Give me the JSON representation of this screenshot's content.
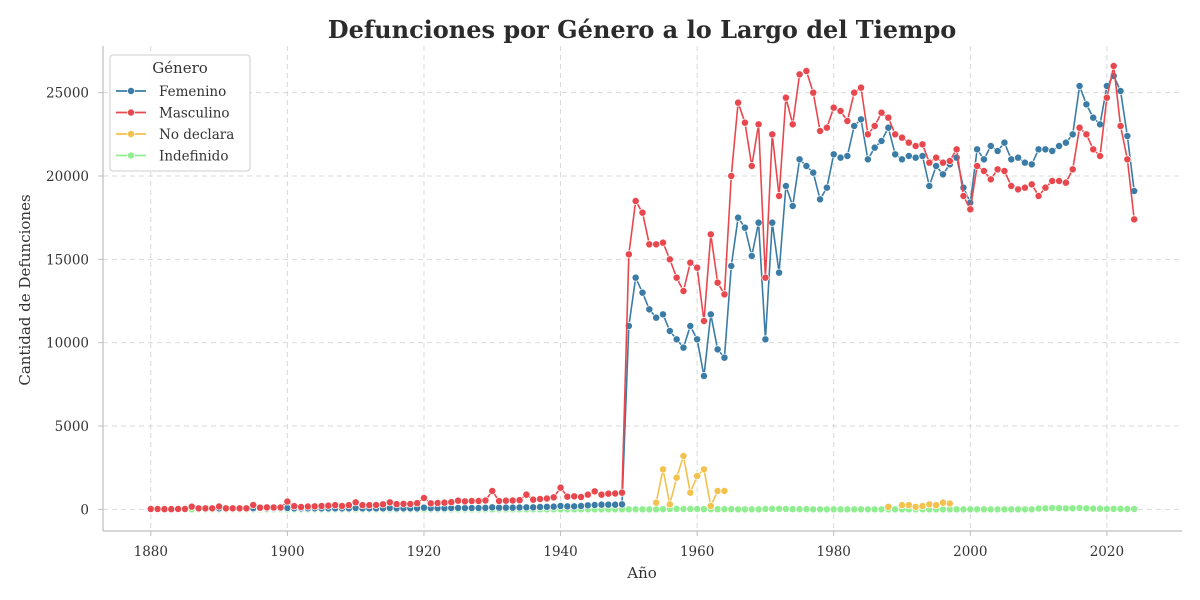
{
  "chart_data": {
    "type": "line",
    "title": "Defunciones por Género a lo Largo del Tiempo",
    "xlabel": "Año",
    "ylabel": "Cantidad de Defunciones",
    "xlim": [
      1873,
      2031
    ],
    "ylim": [
      -1300,
      27800
    ],
    "xticks": [
      1880,
      1900,
      1920,
      1940,
      1960,
      1980,
      2000,
      2020
    ],
    "yticks": [
      0,
      5000,
      10000,
      15000,
      20000,
      25000
    ],
    "grid": true,
    "legend": {
      "title": "Género",
      "placement": "top-left",
      "entries": [
        "Femenino",
        "Masculino",
        "No declara",
        "Indefinido"
      ]
    },
    "series": [
      {
        "name": "Femenino",
        "color": "#3a7ca5",
        "x": [
          1887,
          1888,
          1889,
          1890,
          1891,
          1892,
          1893,
          1894,
          1895,
          1896,
          1897,
          1898,
          1899,
          1900,
          1901,
          1902,
          1903,
          1904,
          1905,
          1906,
          1907,
          1908,
          1909,
          1910,
          1911,
          1912,
          1913,
          1914,
          1915,
          1916,
          1917,
          1918,
          1919,
          1920,
          1921,
          1922,
          1923,
          1924,
          1925,
          1926,
          1927,
          1928,
          1929,
          1930,
          1931,
          1932,
          1933,
          1934,
          1935,
          1936,
          1937,
          1938,
          1939,
          1940,
          1941,
          1942,
          1943,
          1944,
          1945,
          1946,
          1947,
          1948,
          1949,
          1950,
          1951,
          1952,
          1953,
          1954,
          1955,
          1956,
          1957,
          1958,
          1959,
          1960,
          1961,
          1962,
          1963,
          1964,
          1965,
          1966,
          1967,
          1968,
          1969,
          1970,
          1971,
          1972,
          1973,
          1974,
          1975,
          1976,
          1977,
          1978,
          1979,
          1980,
          1981,
          1982,
          1983,
          1984,
          1985,
          1986,
          1987,
          1988,
          1989,
          1990,
          1991,
          1992,
          1993,
          1994,
          1995,
          1996,
          1997,
          1998,
          1999,
          2000,
          2001,
          2002,
          2003,
          2004,
          2005,
          2006,
          2007,
          2008,
          2009,
          2010,
          2011,
          2012,
          2013,
          2014,
          2015,
          2016,
          2017,
          2018,
          2019,
          2020,
          2021,
          2022,
          2023,
          2024
        ],
        "y": [
          60,
          60,
          60,
          60,
          60,
          60,
          60,
          60,
          70,
          60,
          60,
          60,
          60,
          80,
          60,
          60,
          60,
          60,
          60,
          60,
          60,
          60,
          60,
          80,
          60,
          60,
          60,
          60,
          80,
          60,
          60,
          60,
          60,
          100,
          70,
          70,
          70,
          80,
          80,
          80,
          80,
          80,
          90,
          120,
          100,
          100,
          100,
          110,
          120,
          120,
          140,
          150,
          160,
          200,
          180,
          180,
          200,
          240,
          260,
          280,
          280,
          280,
          300,
          11000,
          13900,
          13000,
          12000,
          11500,
          11700,
          10700,
          10200,
          9700,
          11000,
          10200,
          8000,
          11700,
          9600,
          9100,
          14600,
          17500,
          16900,
          15200,
          17200,
          10200,
          17200,
          14200,
          19400,
          18200,
          21000,
          20600,
          20200,
          18600,
          19300,
          21300,
          21100,
          21200,
          23000,
          23400,
          21000,
          21700,
          22100,
          22900,
          21300,
          21000,
          21200,
          21100,
          21200,
          19400,
          20600,
          20100,
          20700,
          21100,
          19300,
          18400,
          21600,
          21000,
          21800,
          21500,
          22000,
          21000,
          21100,
          20800,
          20700,
          21600,
          21600,
          21500,
          21800,
          22000,
          22500,
          25400,
          24300,
          23500,
          23100,
          25400,
          26000,
          25100,
          22400,
          19100
        ]
      },
      {
        "name": "Masculino",
        "color": "#e8484d",
        "x": [
          1880,
          1881,
          1882,
          1883,
          1884,
          1885,
          1886,
          1887,
          1888,
          1889,
          1890,
          1891,
          1892,
          1893,
          1894,
          1895,
          1896,
          1897,
          1898,
          1899,
          1900,
          1901,
          1902,
          1903,
          1904,
          1905,
          1906,
          1907,
          1908,
          1909,
          1910,
          1911,
          1912,
          1913,
          1914,
          1915,
          1916,
          1917,
          1918,
          1919,
          1920,
          1921,
          1922,
          1923,
          1924,
          1925,
          1926,
          1927,
          1928,
          1929,
          1930,
          1931,
          1932,
          1933,
          1934,
          1935,
          1936,
          1937,
          1938,
          1939,
          1940,
          1941,
          1942,
          1943,
          1944,
          1945,
          1946,
          1947,
          1948,
          1949,
          1950,
          1951,
          1952,
          1953,
          1954,
          1955,
          1956,
          1957,
          1958,
          1959,
          1960,
          1961,
          1962,
          1963,
          1964,
          1965,
          1966,
          1967,
          1968,
          1969,
          1970,
          1971,
          1972,
          1973,
          1974,
          1975,
          1976,
          1977,
          1978,
          1979,
          1980,
          1981,
          1982,
          1983,
          1984,
          1985,
          1986,
          1987,
          1988,
          1989,
          1990,
          1991,
          1992,
          1993,
          1994,
          1995,
          1996,
          1997,
          1998,
          1999,
          2000,
          2001,
          2002,
          2003,
          2004,
          2005,
          2006,
          2007,
          2008,
          2009,
          2010,
          2011,
          2012,
          2013,
          2014,
          2015,
          2016,
          2017,
          2018,
          2019,
          2020,
          2021,
          2022,
          2023,
          2024
        ],
        "y": [
          20,
          20,
          10,
          10,
          20,
          20,
          160,
          60,
          60,
          60,
          170,
          60,
          60,
          60,
          60,
          260,
          100,
          120,
          110,
          110,
          470,
          190,
          140,
          170,
          180,
          200,
          220,
          250,
          200,
          250,
          420,
          250,
          250,
          260,
          300,
          420,
          310,
          330,
          320,
          370,
          680,
          360,
          380,
          400,
          430,
          520,
          480,
          500,
          500,
          530,
          1100,
          500,
          520,
          530,
          550,
          880,
          580,
          620,
          650,
          720,
          1300,
          760,
          780,
          740,
          880,
          1080,
          880,
          940,
          950,
          1000,
          15300,
          18500,
          17800,
          15900,
          15900,
          16000,
          15000,
          13900,
          13100,
          14800,
          14500,
          11300,
          16500,
          13600,
          12900,
          20000,
          24400,
          23200,
          20600,
          23100,
          13900,
          22500,
          18800,
          24700,
          23100,
          26100,
          26300,
          25000,
          22700,
          22900,
          24100,
          23900,
          23300,
          25000,
          25300,
          22500,
          23000,
          23800,
          23500,
          22500,
          22300,
          22000,
          21800,
          21900,
          20800,
          21100,
          20800,
          20900,
          21600,
          18800,
          18000,
          20600,
          20300,
          19800,
          20400,
          20300,
          19400,
          19200,
          19300,
          19500,
          18800,
          19300,
          19700,
          19700,
          19600,
          20400,
          22900,
          22500,
          21600,
          21200,
          24700,
          26600,
          23000,
          21000,
          17400
        ]
      },
      {
        "name": "No declara",
        "color": "#f2c14e",
        "x": [
          1954,
          1955,
          1956,
          1957,
          1958,
          1959,
          1960,
          1961,
          1962,
          1963,
          1964,
          1988,
          1990,
          1991,
          1992,
          1993,
          1994,
          1995,
          1996,
          1997
        ],
        "y": [
          400,
          2400,
          300,
          1900,
          3200,
          1000,
          2000,
          2400,
          200,
          1100,
          1100,
          150,
          250,
          250,
          150,
          200,
          300,
          250,
          400,
          350
        ]
      },
      {
        "name": "Indefinido",
        "color": "#90ee90",
        "x": [
          1880,
          1881,
          1882,
          1883,
          1884,
          1885,
          1886,
          1887,
          1888,
          1889,
          1890,
          1891,
          1892,
          1893,
          1894,
          1895,
          1896,
          1897,
          1898,
          1899,
          1900,
          1901,
          1902,
          1903,
          1904,
          1905,
          1906,
          1907,
          1908,
          1909,
          1910,
          1911,
          1912,
          1913,
          1914,
          1915,
          1916,
          1917,
          1918,
          1919,
          1920,
          1921,
          1922,
          1923,
          1924,
          1925,
          1926,
          1927,
          1928,
          1929,
          1930,
          1931,
          1932,
          1933,
          1934,
          1935,
          1936,
          1937,
          1938,
          1939,
          1940,
          1941,
          1942,
          1943,
          1944,
          1945,
          1946,
          1947,
          1948,
          1949,
          1950,
          1951,
          1952,
          1953,
          1954,
          1955,
          1956,
          1957,
          1958,
          1959,
          1960,
          1961,
          1962,
          1963,
          1964,
          1965,
          1966,
          1967,
          1968,
          1969,
          1970,
          1971,
          1972,
          1973,
          1974,
          1975,
          1976,
          1977,
          1978,
          1979,
          1980,
          1981,
          1982,
          1983,
          1984,
          1985,
          1986,
          1987,
          1988,
          1989,
          1990,
          1991,
          1992,
          1993,
          1994,
          1995,
          1996,
          1997,
          1998,
          1999,
          2000,
          2001,
          2002,
          2003,
          2004,
          2005,
          2006,
          2007,
          2008,
          2009,
          2010,
          2011,
          2012,
          2013,
          2014,
          2015,
          2016,
          2017,
          2018,
          2019,
          2020,
          2021,
          2022,
          2023,
          2024
        ],
        "y": [
          0,
          0,
          0,
          0,
          0,
          0,
          0,
          0,
          0,
          0,
          0,
          0,
          0,
          0,
          0,
          0,
          0,
          0,
          0,
          0,
          0,
          0,
          0,
          0,
          0,
          0,
          0,
          0,
          0,
          0,
          0,
          0,
          0,
          0,
          0,
          0,
          0,
          0,
          0,
          0,
          0,
          0,
          0,
          0,
          0,
          0,
          0,
          0,
          0,
          0,
          0,
          0,
          0,
          0,
          0,
          0,
          0,
          0,
          0,
          0,
          0,
          0,
          0,
          0,
          0,
          0,
          0,
          0,
          0,
          0,
          0,
          0,
          0,
          0,
          0,
          10,
          20,
          30,
          20,
          20,
          20,
          10,
          10,
          10,
          10,
          10,
          0,
          0,
          0,
          0,
          20,
          30,
          30,
          20,
          10,
          10,
          10,
          0,
          0,
          0,
          0,
          0,
          0,
          0,
          0,
          0,
          0,
          0,
          0,
          0,
          0,
          0,
          0,
          0,
          0,
          0,
          0,
          0,
          0,
          0,
          0,
          0,
          0,
          0,
          0,
          0,
          0,
          0,
          0,
          0,
          50,
          60,
          80,
          70,
          60,
          60,
          80,
          60,
          40,
          40,
          30,
          30,
          30,
          20,
          20
        ]
      }
    ]
  }
}
